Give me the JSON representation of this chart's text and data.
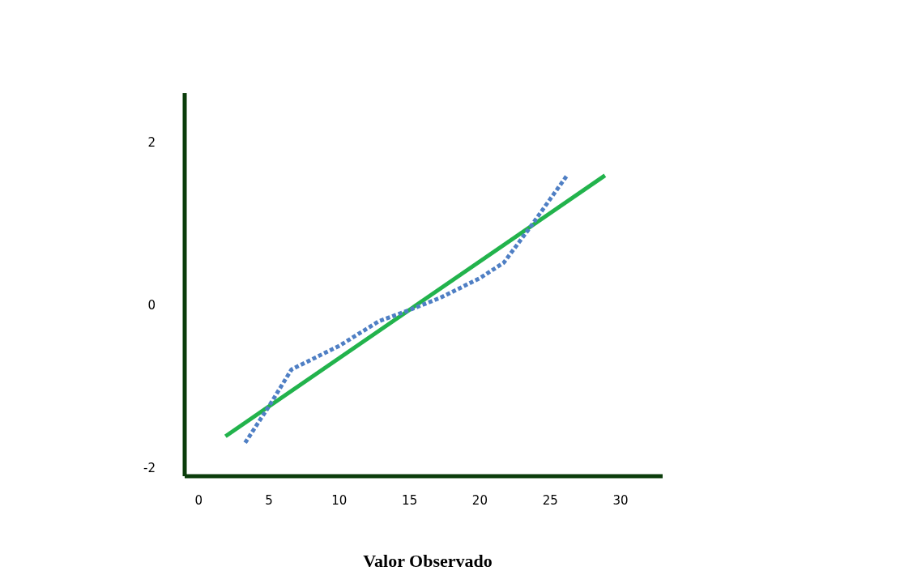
{
  "chart_data": {
    "type": "line",
    "xlabel": "Valor Observado",
    "xlim": [
      -1,
      33
    ],
    "xticks": [
      0,
      5,
      10,
      15,
      20,
      25,
      30
    ],
    "ylim": [
      -2.1,
      2.6
    ],
    "yticks": [
      -2,
      0,
      2
    ],
    "marker": "none",
    "series": [
      {
        "color": "#22b34c",
        "line_style": "solid",
        "x": [
          1.9,
          28.9
        ],
        "values": [
          -1.61,
          1.59
        ]
      },
      {
        "color": "#4f7fc4",
        "line_style": "dotted",
        "x": [
          3.3,
          5,
          6.6,
          10,
          12.8,
          15,
          17.2,
          20,
          21.7,
          23.6,
          25,
          26.2
        ],
        "values": [
          -1.69,
          -1.24,
          -0.79,
          -0.5,
          -0.2,
          -0.06,
          0.09,
          0.33,
          0.52,
          0.96,
          1.3,
          1.59
        ]
      }
    ]
  }
}
